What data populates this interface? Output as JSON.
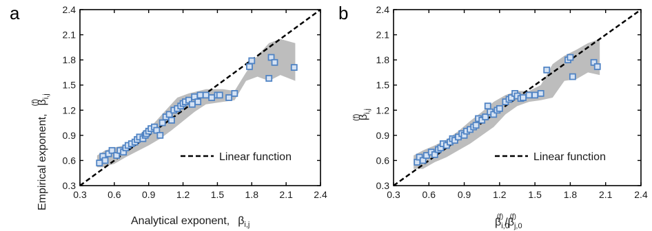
{
  "chart_data": [
    {
      "panel_label": "a",
      "type": "scatter",
      "xlabel": "Analytical exponent,",
      "xlabel_symbol": "β",
      "xlabel_sub": "i,j",
      "ylabel": "Empirical exponent,",
      "ylabel_symbol": "β",
      "ylabel_sub": "i,j",
      "ylabel_sup": "(f)",
      "xlim": [
        0.3,
        2.4
      ],
      "ylim": [
        0.3,
        2.4
      ],
      "xticks": [
        "0.3",
        "0.6",
        "0.9",
        "1.2",
        "1.5",
        "1.8",
        "2.1",
        "2.4"
      ],
      "yticks": [
        "0.3",
        "0.6",
        "0.9",
        "1.2",
        "1.5",
        "1.8",
        "2.1",
        "2.4"
      ],
      "legend": {
        "label": "Linear function",
        "position": "bottom-right"
      },
      "reference_line": {
        "from": [
          0.3,
          0.3
        ],
        "to": [
          2.4,
          2.4
        ]
      },
      "band_upper": [
        [
          0.45,
          0.66
        ],
        [
          0.52,
          0.72
        ],
        [
          0.62,
          0.76
        ],
        [
          0.75,
          0.8
        ],
        [
          0.85,
          0.95
        ],
        [
          0.95,
          1.05
        ],
        [
          1.05,
          1.2
        ],
        [
          1.15,
          1.35
        ],
        [
          1.25,
          1.4
        ],
        [
          1.4,
          1.45
        ],
        [
          1.55,
          1.45
        ],
        [
          1.65,
          1.43
        ],
        [
          1.75,
          1.65
        ],
        [
          1.85,
          1.85
        ],
        [
          1.95,
          2.0
        ],
        [
          2.05,
          2.05
        ],
        [
          2.18,
          2.0
        ]
      ],
      "band_lower": [
        [
          2.18,
          1.55
        ],
        [
          2.05,
          1.62
        ],
        [
          1.95,
          1.55
        ],
        [
          1.85,
          1.6
        ],
        [
          1.75,
          1.55
        ],
        [
          1.65,
          1.32
        ],
        [
          1.55,
          1.3
        ],
        [
          1.4,
          1.27
        ],
        [
          1.3,
          1.18
        ],
        [
          1.2,
          1.07
        ],
        [
          1.1,
          0.96
        ],
        [
          1.0,
          0.86
        ],
        [
          0.9,
          0.78
        ],
        [
          0.8,
          0.71
        ],
        [
          0.7,
          0.64
        ],
        [
          0.6,
          0.56
        ],
        [
          0.5,
          0.52
        ],
        [
          0.45,
          0.52
        ]
      ],
      "points": {
        "x": [
          0.47,
          0.5,
          0.52,
          0.55,
          0.58,
          0.62,
          0.65,
          0.68,
          0.7,
          0.72,
          0.75,
          0.78,
          0.8,
          0.82,
          0.85,
          0.87,
          0.88,
          0.9,
          0.92,
          0.95,
          0.97,
          1.0,
          1.02,
          1.05,
          1.08,
          1.1,
          1.12,
          1.15,
          1.18,
          1.2,
          1.22,
          1.25,
          1.28,
          1.3,
          1.33,
          1.35,
          1.4,
          1.45,
          1.5,
          1.52,
          1.6,
          1.65,
          1.78,
          1.8,
          1.95,
          1.97,
          2.0,
          2.17
        ],
        "y": [
          0.57,
          0.65,
          0.6,
          0.68,
          0.72,
          0.66,
          0.72,
          0.7,
          0.75,
          0.78,
          0.8,
          0.82,
          0.85,
          0.88,
          0.86,
          0.9,
          0.92,
          0.95,
          0.98,
          1.0,
          0.96,
          0.9,
          1.05,
          1.12,
          1.15,
          1.08,
          1.2,
          1.22,
          1.25,
          1.28,
          1.3,
          1.32,
          1.27,
          1.36,
          1.3,
          1.38,
          1.38,
          1.35,
          1.38,
          1.38,
          1.35,
          1.4,
          1.72,
          1.79,
          1.58,
          1.83,
          1.77,
          1.71
        ]
      },
      "marker_color": "#4f83c4",
      "band_color": "#bdbdbd"
    },
    {
      "panel_label": "b",
      "type": "scatter",
      "xlabel_symbol": "β",
      "xlabel_sub": "i,0",
      "xlabel_sup": "(f)",
      "xlabel_denominator_symbol": "β",
      "xlabel_denominator_sub": "j,0",
      "xlabel_denominator_sup": "(f)",
      "ylabel_symbol": "β",
      "ylabel_sub": "i,j",
      "ylabel_sup": "(f)",
      "xlim": [
        0.3,
        2.4
      ],
      "ylim": [
        0.3,
        2.4
      ],
      "xticks": [
        "0.3",
        "0.6",
        "0.9",
        "1.2",
        "1.5",
        "1.8",
        "2.1",
        "2.4"
      ],
      "yticks": [
        "0.3",
        "0.6",
        "0.9",
        "1.2",
        "1.5",
        "1.8",
        "2.1",
        "2.4"
      ],
      "legend": {
        "label": "Linear function",
        "position": "bottom-right"
      },
      "reference_line": {
        "from": [
          0.3,
          0.3
        ],
        "to": [
          2.4,
          2.4
        ]
      },
      "band_upper": [
        [
          0.47,
          0.66
        ],
        [
          0.55,
          0.72
        ],
        [
          0.65,
          0.78
        ],
        [
          0.75,
          0.85
        ],
        [
          0.85,
          0.95
        ],
        [
          0.95,
          1.07
        ],
        [
          1.05,
          1.18
        ],
        [
          1.15,
          1.3
        ],
        [
          1.25,
          1.38
        ],
        [
          1.35,
          1.43
        ],
        [
          1.45,
          1.43
        ],
        [
          1.55,
          1.5
        ],
        [
          1.65,
          1.75
        ],
        [
          1.75,
          1.85
        ],
        [
          1.85,
          1.92
        ],
        [
          1.95,
          2.0
        ],
        [
          2.05,
          2.05
        ]
      ],
      "band_lower": [
        [
          2.05,
          1.62
        ],
        [
          1.95,
          1.65
        ],
        [
          1.85,
          1.57
        ],
        [
          1.75,
          1.55
        ],
        [
          1.65,
          1.35
        ],
        [
          1.55,
          1.32
        ],
        [
          1.45,
          1.3
        ],
        [
          1.35,
          1.25
        ],
        [
          1.25,
          1.15
        ],
        [
          1.15,
          1.0
        ],
        [
          1.05,
          0.9
        ],
        [
          0.95,
          0.8
        ],
        [
          0.85,
          0.72
        ],
        [
          0.75,
          0.64
        ],
        [
          0.65,
          0.58
        ],
        [
          0.55,
          0.5
        ],
        [
          0.47,
          0.5
        ]
      ],
      "points": {
        "x": [
          0.5,
          0.52,
          0.55,
          0.58,
          0.62,
          0.65,
          0.68,
          0.7,
          0.72,
          0.75,
          0.78,
          0.8,
          0.82,
          0.85,
          0.88,
          0.9,
          0.92,
          0.95,
          0.98,
          1.0,
          1.02,
          1.05,
          1.08,
          1.1,
          1.12,
          1.15,
          1.18,
          1.2,
          1.25,
          1.28,
          1.3,
          1.33,
          1.35,
          1.38,
          1.4,
          1.45,
          1.5,
          1.55,
          1.6,
          1.78,
          1.8,
          1.82,
          2.0,
          2.03
        ],
        "y": [
          0.58,
          0.64,
          0.6,
          0.66,
          0.7,
          0.67,
          0.73,
          0.75,
          0.8,
          0.78,
          0.82,
          0.86,
          0.84,
          0.88,
          0.92,
          0.9,
          0.95,
          0.97,
          1.0,
          1.02,
          1.1,
          1.08,
          1.12,
          1.25,
          1.18,
          1.15,
          1.2,
          1.22,
          1.3,
          1.33,
          1.35,
          1.4,
          1.37,
          1.34,
          1.35,
          1.38,
          1.38,
          1.4,
          1.68,
          1.8,
          1.83,
          1.6,
          1.77,
          1.72
        ]
      },
      "marker_color": "#4f83c4",
      "band_color": "#bdbdbd"
    }
  ]
}
